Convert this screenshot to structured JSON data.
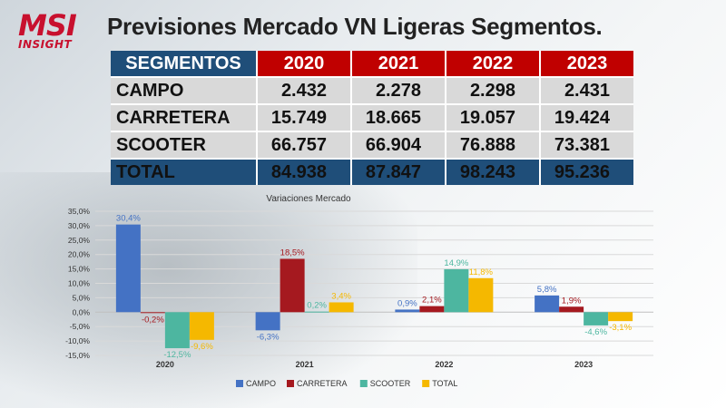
{
  "header": {
    "logo_main": "MSI",
    "logo_sub": "INSIGHT",
    "title": "Previsiones Mercado VN Ligeras Segmentos."
  },
  "table": {
    "header_label": "SEGMENTOS",
    "years": [
      "2020",
      "2021",
      "2022",
      "2023"
    ],
    "rows": [
      {
        "name": "CAMPO",
        "values": [
          "2.432",
          "2.278",
          "2.298",
          "2.431"
        ]
      },
      {
        "name": "CARRETERA",
        "values": [
          "15.749",
          "18.665",
          "19.057",
          "19.424"
        ]
      },
      {
        "name": "SCOOTER",
        "values": [
          "66.757",
          "66.904",
          "76.888",
          "73.381"
        ]
      }
    ],
    "total": {
      "name": "TOTAL",
      "values": [
        "84.938",
        "87.847",
        "98.243",
        "95.236"
      ]
    }
  },
  "chart_data": {
    "type": "bar",
    "title": "Variaciones Mercado",
    "categories": [
      "2020",
      "2021",
      "2022",
      "2023"
    ],
    "series": [
      {
        "name": "CAMPO",
        "color": "#4472c4",
        "values": [
          30.4,
          -6.3,
          0.9,
          5.8
        ],
        "labels": [
          "30,4%",
          "-6,3%",
          "0,9%",
          "5,8%"
        ]
      },
      {
        "name": "CARRETERA",
        "color": "#a5191f",
        "values": [
          -0.2,
          18.5,
          2.1,
          1.9
        ],
        "labels": [
          "-0,2%",
          "18,5%",
          "2,1%",
          "1,9%"
        ]
      },
      {
        "name": "SCOOTER",
        "color": "#4db6a0",
        "values": [
          -12.5,
          0.2,
          14.9,
          -4.6
        ],
        "labels": [
          "-12,5%",
          "0,2%",
          "14,9%",
          "-4,6%"
        ]
      },
      {
        "name": "TOTAL",
        "color": "#f5b800",
        "values": [
          -9.6,
          3.4,
          11.8,
          -3.1
        ],
        "labels": [
          "-9,6%",
          "3,4%",
          "11,8%",
          "-3,1%"
        ]
      }
    ],
    "ylim": [
      -15,
      35
    ],
    "yticks": [
      "35,0%",
      "30,0%",
      "25,0%",
      "20,0%",
      "15,0%",
      "10,0%",
      "5,0%",
      "0,0%",
      "-5,0%",
      "-10,0%",
      "-15,0%"
    ],
    "ytick_values": [
      35,
      30,
      25,
      20,
      15,
      10,
      5,
      0,
      -5,
      -10,
      -15
    ],
    "grid": true,
    "legend": "bottom"
  }
}
